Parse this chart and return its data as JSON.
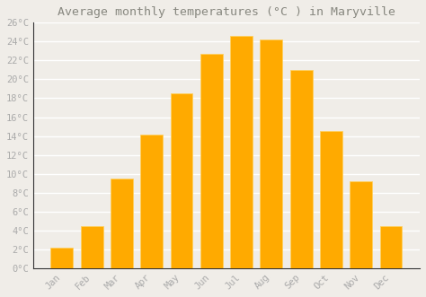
{
  "months": [
    "Jan",
    "Feb",
    "Mar",
    "Apr",
    "May",
    "Jun",
    "Jul",
    "Aug",
    "Sep",
    "Oct",
    "Nov",
    "Dec"
  ],
  "values": [
    2.2,
    4.5,
    9.5,
    14.1,
    18.5,
    22.7,
    24.6,
    24.2,
    21.0,
    14.5,
    9.2,
    4.5
  ],
  "bar_color": "#FFAA00",
  "bar_edge_color": "#FFD060",
  "title": "Average monthly temperatures (°C ) in Maryville",
  "ylim": [
    0,
    26
  ],
  "yticks": [
    0,
    2,
    4,
    6,
    8,
    10,
    12,
    14,
    16,
    18,
    20,
    22,
    24,
    26
  ],
  "ytick_labels": [
    "0°C",
    "2°C",
    "4°C",
    "6°C",
    "8°C",
    "10°C",
    "12°C",
    "14°C",
    "16°C",
    "18°C",
    "20°C",
    "22°C",
    "24°C",
    "26°C"
  ],
  "background_color": "#f0ede8",
  "plot_bg_color": "#f0ede8",
  "grid_color": "#ffffff",
  "title_color": "#888880",
  "tick_color": "#aaaaaa",
  "title_fontsize": 9.5,
  "tick_fontsize": 7.5,
  "bar_width": 0.75,
  "figsize": [
    4.74,
    3.31
  ],
  "dpi": 100
}
